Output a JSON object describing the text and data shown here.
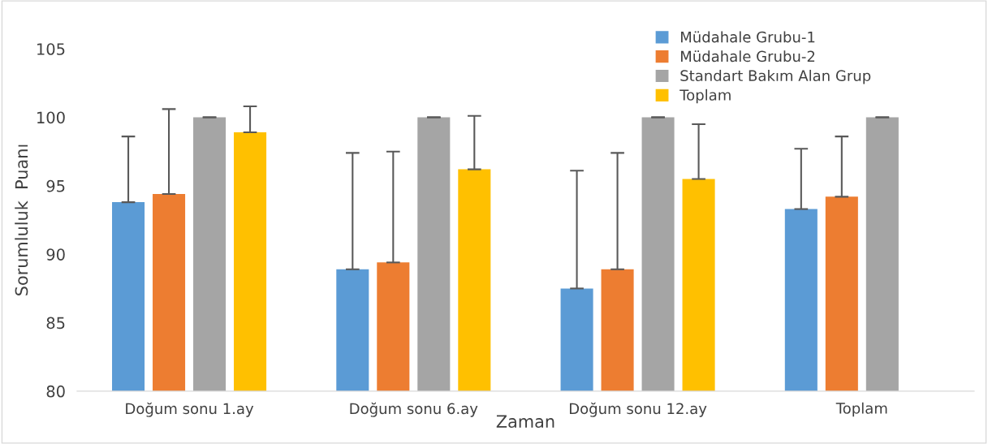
{
  "chart_data": {
    "type": "bar",
    "xlabel": "Zaman",
    "ylabel": "Sorumluluk  Puanı",
    "categories": [
      "Doğum sonu 1.ay",
      "Doğum sonu 6.ay",
      "Doğum sonu 12.ay",
      "Toplam"
    ],
    "series": [
      {
        "name": "Müdahale Grubu-1",
        "color": "#5b9bd5",
        "values": [
          93.8,
          88.9,
          87.5,
          93.3
        ],
        "errors": [
          [
            93.8,
            98.6
          ],
          [
            88.9,
            97.4
          ],
          [
            87.5,
            96.1
          ],
          [
            93.3,
            97.7
          ]
        ]
      },
      {
        "name": "Müdahale Grubu-2",
        "color": "#ed7d31",
        "values": [
          94.4,
          89.4,
          88.9,
          94.2
        ],
        "errors": [
          [
            94.4,
            100.6
          ],
          [
            89.4,
            97.5
          ],
          [
            88.9,
            97.4
          ],
          [
            94.2,
            98.6
          ]
        ]
      },
      {
        "name": "Standart Bakım Alan Grup",
        "color": "#a5a5a5",
        "values": [
          100,
          100,
          100,
          100
        ],
        "errors": [
          [
            100,
            100
          ],
          [
            100,
            100
          ],
          [
            100,
            100
          ],
          [
            100,
            100
          ]
        ]
      },
      {
        "name": "Toplam",
        "color": "#ffc000",
        "values": [
          98.9,
          96.2,
          95.5,
          null
        ],
        "errors": [
          [
            98.9,
            100.8
          ],
          [
            96.2,
            100.1
          ],
          [
            95.5,
            99.5
          ],
          null
        ]
      }
    ],
    "ylim": [
      80,
      105
    ],
    "yticks": [
      80,
      85,
      90,
      95,
      100,
      105
    ],
    "grid": false,
    "legend": "top right"
  }
}
